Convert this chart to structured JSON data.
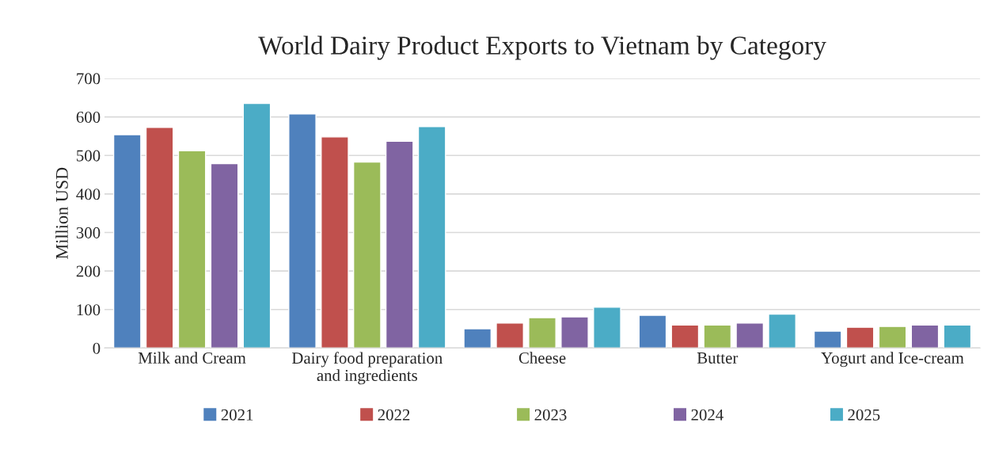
{
  "chart_data": {
    "type": "bar",
    "title": "World Dairy Product Exports to Vietnam by Category",
    "ylabel": "Million USD",
    "categories": [
      "Milk and Cream",
      "Dairy food preparation\nand ingredients",
      "Cheese",
      "Butter",
      "Yogurt and Ice-cream"
    ],
    "series": [
      {
        "name": "2021",
        "color": "#4f81bd",
        "values": [
          554,
          608,
          50,
          85,
          44
        ]
      },
      {
        "name": "2022",
        "color": "#c0504d",
        "values": [
          573,
          548,
          65,
          60,
          54
        ]
      },
      {
        "name": "2023",
        "color": "#9bbb59",
        "values": [
          512,
          483,
          79,
          60,
          56
        ]
      },
      {
        "name": "2024",
        "color": "#8064a2",
        "values": [
          479,
          537,
          81,
          65,
          60
        ]
      },
      {
        "name": "2025",
        "color": "#4bacc6",
        "values": [
          635,
          575,
          106,
          88,
          60
        ]
      }
    ],
    "ylim": [
      0,
      700
    ],
    "yticks": [
      0,
      100,
      200,
      300,
      400,
      500,
      600,
      700
    ],
    "grid": "y",
    "legend": "bottom"
  }
}
